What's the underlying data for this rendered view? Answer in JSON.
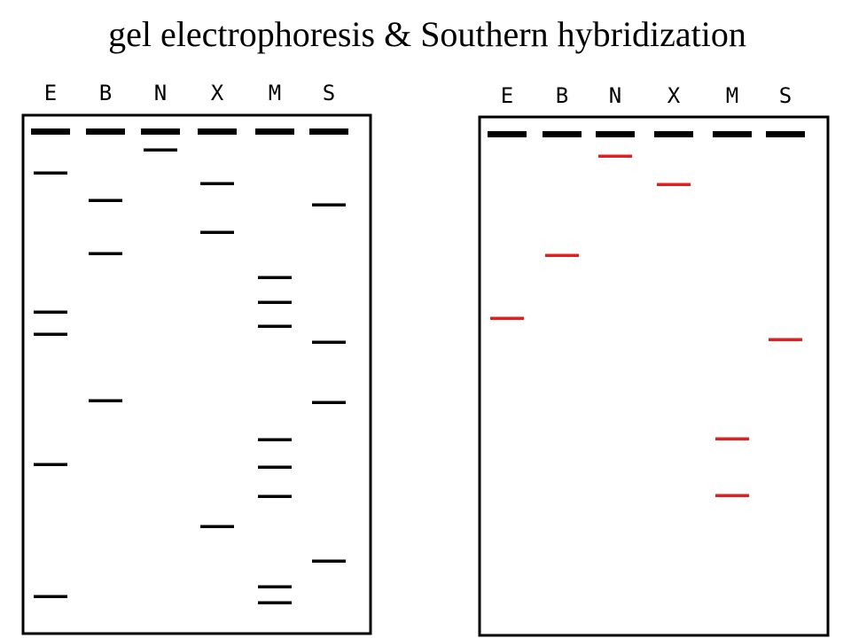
{
  "title": "gel electrophoresis & Southern hybridization",
  "gels": [
    {
      "lanes": [
        "E",
        "B",
        "N",
        "X",
        "M",
        "S"
      ]
    },
    {
      "lanes": [
        "E",
        "B",
        "N",
        "X",
        "M",
        "S"
      ]
    }
  ]
}
